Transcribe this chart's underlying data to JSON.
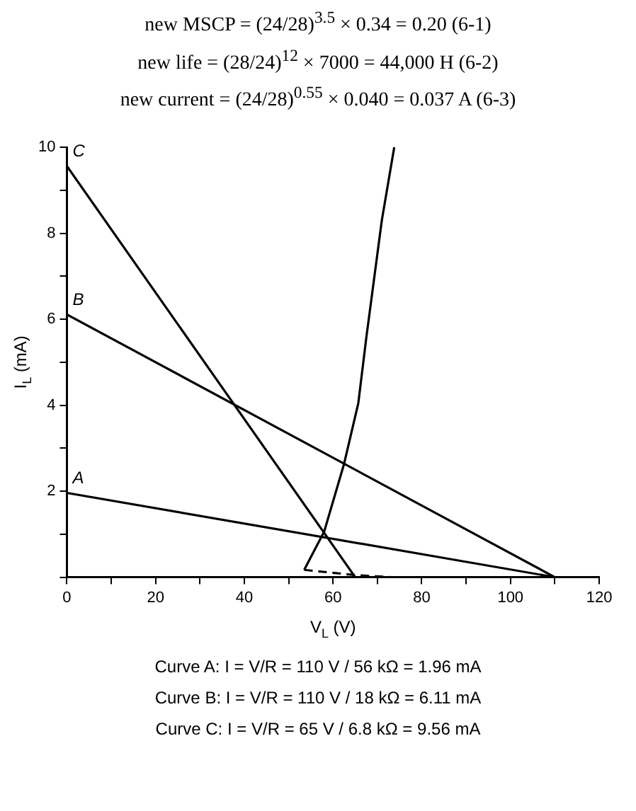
{
  "chart_data": {
    "type": "line",
    "xlabel": "V$_{L}$ (V)",
    "ylabel": "I$_{L}$ (mA)",
    "xlim": [
      0,
      120
    ],
    "xticks": [
      0,
      {
        "value": 10,
        "label": null
      },
      20,
      {
        "value": 30,
        "label": null
      },
      40,
      {
        "value": 50,
        "label": null
      },
      60,
      {
        "value": 70,
        "label": null
      },
      80,
      {
        "value": 90,
        "label": null
      },
      100,
      {
        "value": 110,
        "label": null
      },
      120
    ],
    "ylim": [
      0,
      10
    ],
    "yticks": [
      {
        "value": 0,
        "label": null
      },
      {
        "value": 1,
        "label": null
      },
      2,
      {
        "value": 3,
        "label": null
      },
      4,
      {
        "value": 5,
        "label": null
      },
      6,
      {
        "value": 7,
        "label": null
      },
      8,
      {
        "value": 9,
        "label": null
      },
      10
    ],
    "grid": false,
    "legend": false,
    "marker": "none",
    "line_style": "solid",
    "series": [
      {
        "name": "A",
        "color": "#000000",
        "x": [
          0,
          110
        ],
        "values": [
          1.96,
          0
        ]
      },
      {
        "name": "B",
        "color": "#000000",
        "x": [
          0,
          110
        ],
        "values": [
          6.11,
          0
        ]
      },
      {
        "name": "C",
        "color": "#000000",
        "x": [
          0,
          65
        ],
        "values": [
          9.56,
          0
        ]
      },
      {
        "color": "#000000",
        "x": [
          53.5,
          58,
          62.5,
          65.7,
          67.5,
          71,
          73.8
        ],
        "values": [
          0.17,
          1.06,
          2.64,
          4.05,
          5.57,
          8.3,
          10
        ]
      },
      {
        "color": "#000000",
        "line_style": "dashed",
        "x": [
          53.5,
          65,
          73
        ],
        "values": [
          0.17,
          0.05,
          0
        ]
      }
    ],
    "annotations": [
      "new MSCP = (24/28)$^{3.5}$ × 0.34 = 0.20   (6-1)",
      "new life = (28/24)$^{12}$ × 7000 = 44,000 H   (6-2)",
      "new current = (24/28)$^{0.55}$ × 0.040 = 0.037 A   (6-3)",
      "Curve A: I = V/R = 110 V / 56 kΩ = 1.96 mA",
      "Curve B: I = V/R = 110 V / 18 kΩ = 6.11 mA",
      "Curve C: I = V/R = 65 V / 6.8 kΩ = 9.56 mA"
    ]
  }
}
